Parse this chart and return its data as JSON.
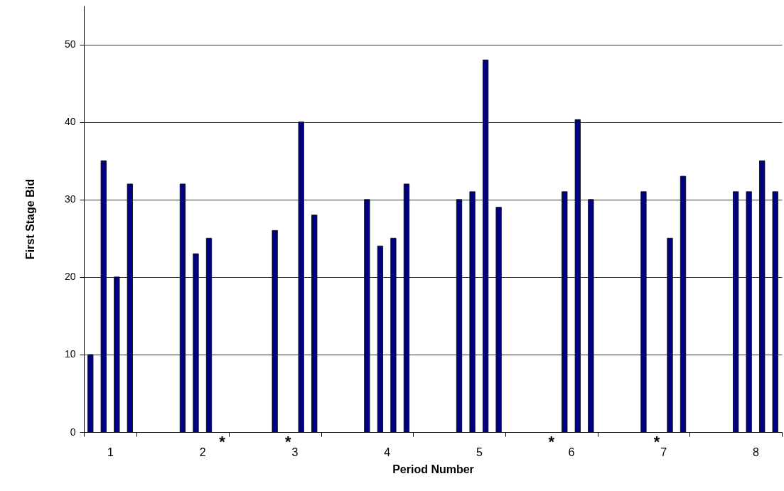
{
  "chart_data": {
    "type": "bar",
    "xlabel": "Period Number",
    "ylabel": "First Stage Bid",
    "categories": [
      "1",
      "2",
      "3",
      "4",
      "5",
      "6",
      "7",
      "8"
    ],
    "series": [
      {
        "color": "#000080",
        "values": [
          10,
          32,
          26,
          30,
          30,
          null,
          31,
          31
        ]
      },
      {
        "color": "#000080",
        "values": [
          35,
          23,
          null,
          24,
          31,
          31,
          null,
          31
        ]
      },
      {
        "color": "#000080",
        "values": [
          20,
          25,
          40,
          25,
          48,
          40.3,
          25,
          35
        ]
      },
      {
        "color": "#000080",
        "values": [
          32,
          null,
          28,
          32,
          29,
          30,
          33,
          31
        ]
      }
    ],
    "ylim": [
      0,
      55
    ],
    "yticks": [
      0,
      10,
      20,
      30,
      40,
      50
    ],
    "grid": "y",
    "annotations": [
      "*",
      "*",
      "*",
      "*"
    ]
  }
}
